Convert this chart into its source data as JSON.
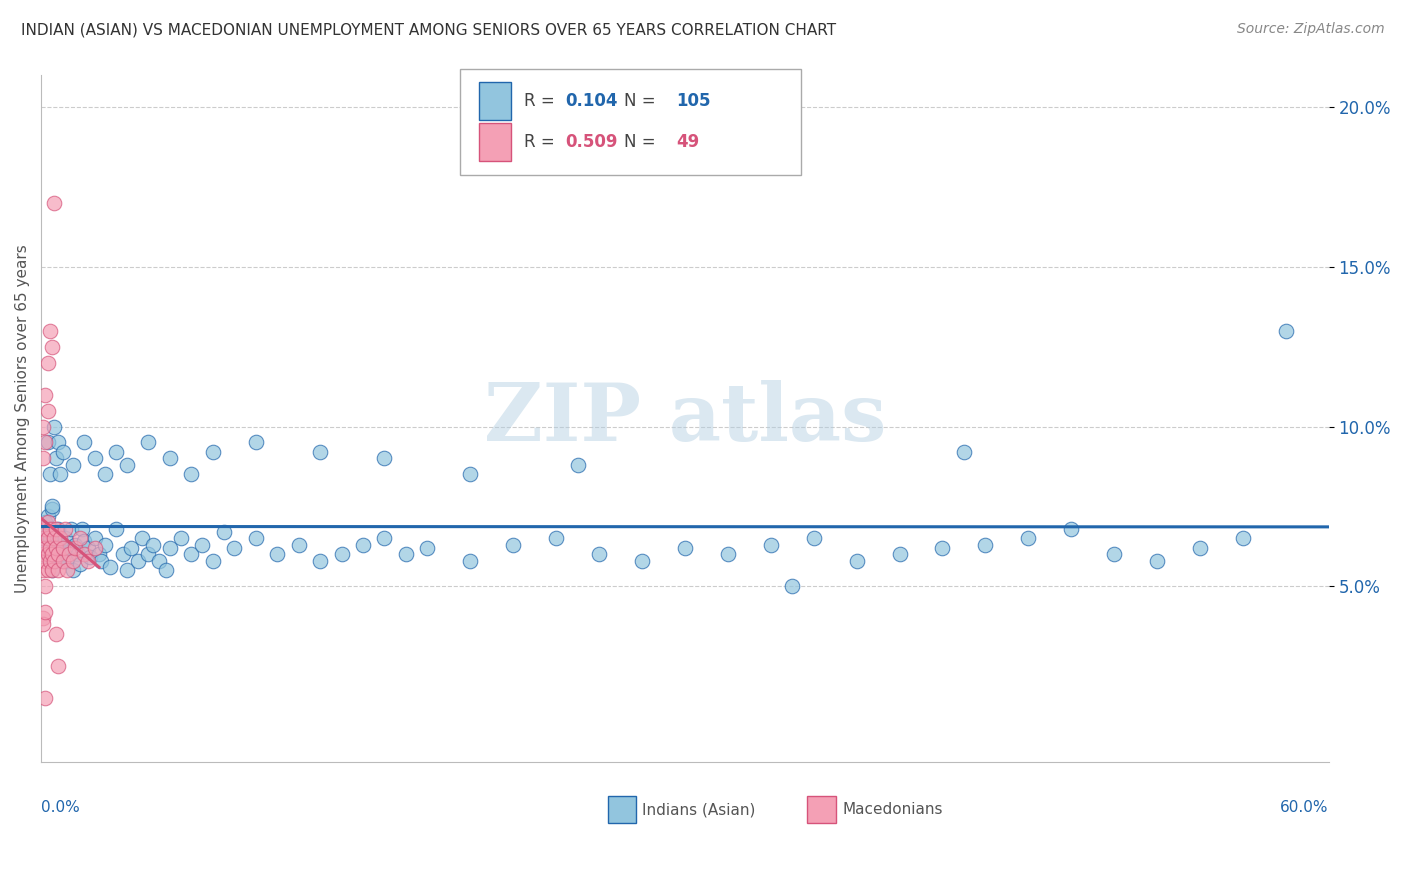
{
  "title": "INDIAN (ASIAN) VS MACEDONIAN UNEMPLOYMENT AMONG SENIORS OVER 65 YEARS CORRELATION CHART",
  "source": "Source: ZipAtlas.com",
  "ylabel": "Unemployment Among Seniors over 65 years",
  "xlim": [
    0,
    0.6
  ],
  "ylim": [
    -0.005,
    0.21
  ],
  "yticks": [
    0.05,
    0.1,
    0.15,
    0.2
  ],
  "ytick_labels": [
    "5.0%",
    "10.0%",
    "15.0%",
    "20.0%"
  ],
  "indian_color": "#92c5de",
  "macedonian_color": "#f4a0b5",
  "indian_line_color": "#2166ac",
  "macedonian_line_color": "#d6537a",
  "background_color": "#ffffff",
  "indian_x": [
    0.001,
    0.002,
    0.002,
    0.003,
    0.003,
    0.003,
    0.004,
    0.004,
    0.005,
    0.005,
    0.005,
    0.006,
    0.006,
    0.007,
    0.007,
    0.008,
    0.008,
    0.009,
    0.009,
    0.01,
    0.01,
    0.011,
    0.011,
    0.012,
    0.013,
    0.014,
    0.015,
    0.016,
    0.017,
    0.018,
    0.019,
    0.02,
    0.022,
    0.023,
    0.025,
    0.027,
    0.028,
    0.03,
    0.032,
    0.035,
    0.038,
    0.04,
    0.042,
    0.045,
    0.047,
    0.05,
    0.052,
    0.055,
    0.058,
    0.06,
    0.065,
    0.07,
    0.075,
    0.08,
    0.085,
    0.09,
    0.1,
    0.11,
    0.12,
    0.13,
    0.14,
    0.15,
    0.16,
    0.17,
    0.18,
    0.2,
    0.22,
    0.24,
    0.26,
    0.28,
    0.3,
    0.32,
    0.34,
    0.36,
    0.38,
    0.4,
    0.42,
    0.44,
    0.46,
    0.48,
    0.5,
    0.52,
    0.54,
    0.56,
    0.003,
    0.004,
    0.005,
    0.006,
    0.007,
    0.008,
    0.009,
    0.01,
    0.015,
    0.02,
    0.025,
    0.03,
    0.035,
    0.04,
    0.05,
    0.06,
    0.07,
    0.08,
    0.1,
    0.13,
    0.16,
    0.2,
    0.25,
    0.35,
    0.43,
    0.58
  ],
  "indian_y": [
    0.065,
    0.063,
    0.07,
    0.06,
    0.066,
    0.072,
    0.058,
    0.065,
    0.055,
    0.068,
    0.074,
    0.058,
    0.063,
    0.06,
    0.066,
    0.062,
    0.068,
    0.059,
    0.064,
    0.058,
    0.063,
    0.065,
    0.06,
    0.058,
    0.062,
    0.068,
    0.055,
    0.063,
    0.06,
    0.057,
    0.068,
    0.064,
    0.062,
    0.059,
    0.065,
    0.06,
    0.058,
    0.063,
    0.056,
    0.068,
    0.06,
    0.055,
    0.062,
    0.058,
    0.065,
    0.06,
    0.063,
    0.058,
    0.055,
    0.062,
    0.065,
    0.06,
    0.063,
    0.058,
    0.067,
    0.062,
    0.065,
    0.06,
    0.063,
    0.058,
    0.06,
    0.063,
    0.065,
    0.06,
    0.062,
    0.058,
    0.063,
    0.065,
    0.06,
    0.058,
    0.062,
    0.06,
    0.063,
    0.065,
    0.058,
    0.06,
    0.062,
    0.063,
    0.065,
    0.068,
    0.06,
    0.058,
    0.062,
    0.065,
    0.095,
    0.085,
    0.075,
    0.1,
    0.09,
    0.095,
    0.085,
    0.092,
    0.088,
    0.095,
    0.09,
    0.085,
    0.092,
    0.088,
    0.095,
    0.09,
    0.085,
    0.092,
    0.095,
    0.092,
    0.09,
    0.085,
    0.088,
    0.05,
    0.092,
    0.13
  ],
  "macedonian_x": [
    0.001,
    0.001,
    0.001,
    0.002,
    0.002,
    0.002,
    0.002,
    0.003,
    0.003,
    0.003,
    0.003,
    0.004,
    0.004,
    0.004,
    0.005,
    0.005,
    0.006,
    0.006,
    0.007,
    0.007,
    0.008,
    0.008,
    0.009,
    0.01,
    0.01,
    0.011,
    0.012,
    0.013,
    0.015,
    0.016,
    0.018,
    0.02,
    0.022,
    0.025,
    0.001,
    0.001,
    0.002,
    0.002,
    0.003,
    0.003,
    0.004,
    0.005,
    0.006,
    0.007,
    0.008,
    0.001,
    0.001,
    0.002,
    0.002
  ],
  "macedonian_y": [
    0.06,
    0.065,
    0.055,
    0.058,
    0.062,
    0.068,
    0.05,
    0.055,
    0.06,
    0.065,
    0.07,
    0.058,
    0.062,
    0.068,
    0.055,
    0.06,
    0.058,
    0.065,
    0.062,
    0.068,
    0.055,
    0.06,
    0.065,
    0.058,
    0.062,
    0.068,
    0.055,
    0.06,
    0.058,
    0.062,
    0.065,
    0.06,
    0.058,
    0.062,
    0.09,
    0.1,
    0.095,
    0.11,
    0.105,
    0.12,
    0.13,
    0.125,
    0.17,
    0.035,
    0.025,
    0.04,
    0.038,
    0.042,
    0.015
  ],
  "mac_trend_x_start": 0.0,
  "mac_trend_x_end": 0.027,
  "ind_trend_x_start": 0.0,
  "ind_trend_x_end": 0.6
}
